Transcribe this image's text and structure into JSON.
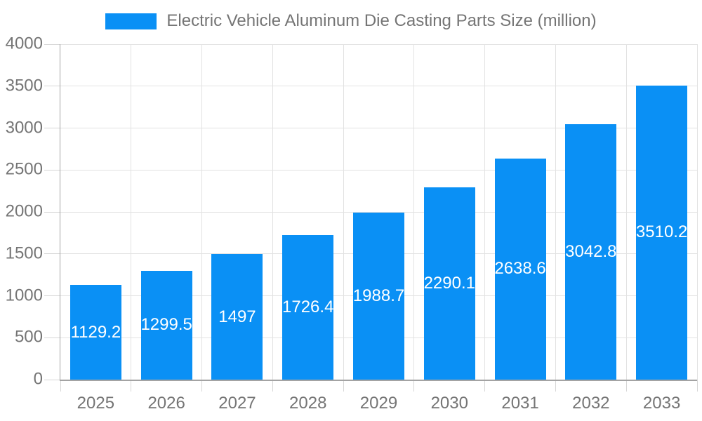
{
  "chart_data": {
    "type": "bar",
    "title": "Electric Vehicle Aluminum Die Casting Parts Size (million)",
    "series_name": "Electric Vehicle Aluminum Die Casting Parts Size (million)",
    "categories": [
      "2025",
      "2026",
      "2027",
      "2028",
      "2029",
      "2030",
      "2031",
      "2032",
      "2033"
    ],
    "values": [
      1129.2,
      1299.5,
      1497,
      1726.4,
      1988.7,
      2290.1,
      2638.6,
      3042.8,
      3510.2
    ],
    "xlabel": "",
    "ylabel": "",
    "ylim": [
      0,
      4000
    ],
    "yticks": [
      0,
      500,
      1000,
      1500,
      2000,
      2500,
      3000,
      3500,
      4000
    ],
    "grid": true,
    "legend_position": "top",
    "value_labels_inside_bars": true,
    "colors": {
      "bar": "#0a90f5",
      "bar_value_text": "#ffffff",
      "axis_text": "#757575",
      "legend_text": "#757575",
      "grid_line": "#e2e2e2",
      "tick_line": "#d6d6d6",
      "axis_line": "#a3a3a3",
      "background": "#ffffff"
    }
  }
}
